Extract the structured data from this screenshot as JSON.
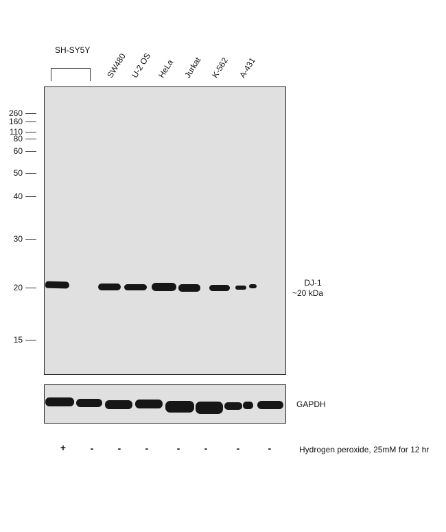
{
  "cell_group_label": "SH-SY5Y",
  "lanes": [
    "SW480",
    "U-2 OS",
    "HeLa",
    "Jurkat",
    "K-562",
    "A-431"
  ],
  "markers": [
    "260",
    "160",
    "110",
    "80",
    "60",
    "50",
    "40",
    "30",
    "20",
    "15"
  ],
  "target_label_line1": "DJ-1",
  "target_label_line2": "~20 kDa",
  "loading_control_label": "GAPDH",
  "treatment_signs": [
    "+",
    "-",
    "-",
    "-",
    "-",
    "-",
    "-",
    "-"
  ],
  "treatment_label": "Hydrogen peroxide, 25mM for 12 hr",
  "colors": {
    "panel_background": "#e0e0e0",
    "band": "#161616",
    "border": "#222222"
  }
}
